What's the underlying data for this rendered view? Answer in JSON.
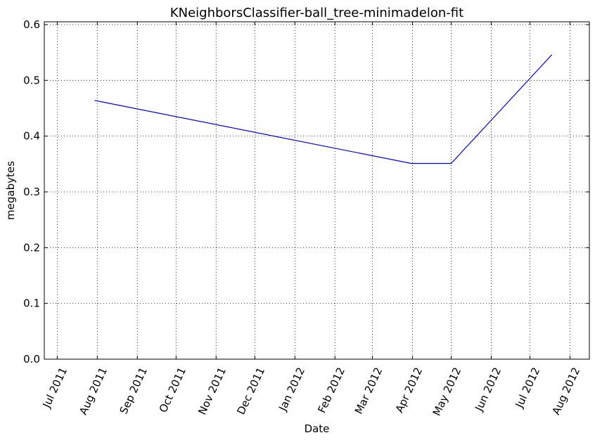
{
  "chart_data": {
    "type": "line",
    "title": "KNeighborsClassifier-ball_tree-minimadelon-fit",
    "xlabel": "Date",
    "ylabel": "megabytes",
    "x_ticks": [
      "2011-07-01",
      "2011-08-01",
      "2011-09-01",
      "2011-10-01",
      "2011-11-01",
      "2011-12-01",
      "2012-01-01",
      "2012-02-01",
      "2012-03-01",
      "2012-04-01",
      "2012-05-01",
      "2012-06-01",
      "2012-07-01",
      "2012-08-01"
    ],
    "x_tick_labels": [
      "Jul 2011",
      "Aug 2011",
      "Sep 2011",
      "Oct 2011",
      "Nov 2011",
      "Dec 2011",
      "Jan 2012",
      "Feb 2012",
      "Mar 2012",
      "Apr 2012",
      "May 2012",
      "Jun 2012",
      "Jul 2012",
      "Aug 2012"
    ],
    "xlim": [
      "2011-06-21",
      "2012-08-16"
    ],
    "ylim": [
      0,
      0.605
    ],
    "y_ticks": [
      0.0,
      0.1,
      0.2,
      0.3,
      0.4,
      0.5,
      0.6
    ],
    "y_tick_labels": [
      "0.0",
      "0.1",
      "0.2",
      "0.3",
      "0.4",
      "0.5",
      "0.6"
    ],
    "grid": true,
    "series": [
      {
        "color": "#0000ff",
        "x": [
          "2011-07-30",
          "2012-03-31",
          "2012-05-01",
          "2012-07-18"
        ],
        "y": [
          0.464,
          0.351,
          0.351,
          0.546
        ]
      }
    ]
  }
}
